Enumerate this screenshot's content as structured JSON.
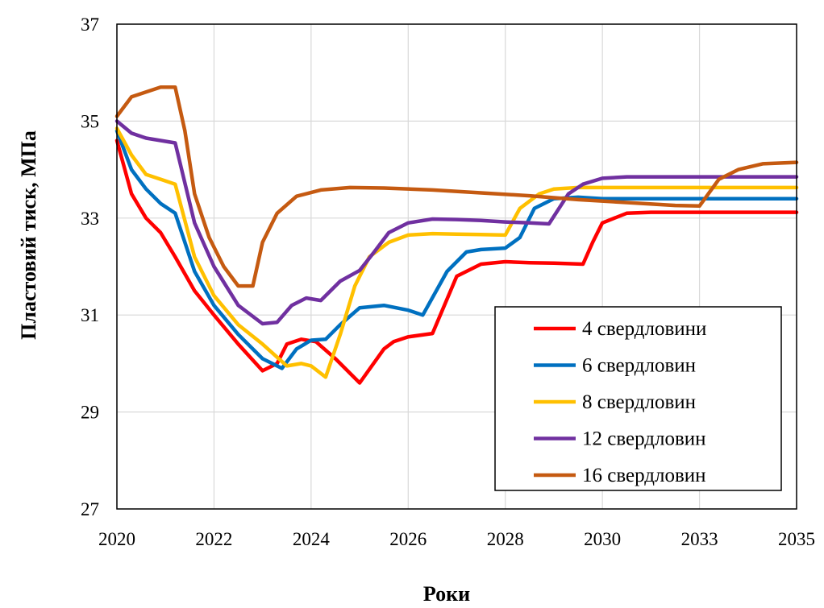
{
  "chart_data": {
    "type": "line",
    "xlabel": "Роки",
    "ylabel": "Пластовий  тиск, МПа",
    "ylim": [
      27,
      37
    ],
    "yticks": [
      27,
      29,
      31,
      33,
      35,
      37
    ],
    "xlim": [
      0,
      14
    ],
    "x_tick_labels": [
      "2020",
      "2022",
      "2024",
      "2026",
      "2028",
      "2030",
      "2033",
      "2035"
    ],
    "grid": true,
    "legend_position": "bottom-right",
    "series": [
      {
        "name": "4 свердловини",
        "color": "#ff0000",
        "x": [
          0,
          0.3,
          0.6,
          0.9,
          1.2,
          1.6,
          2.0,
          2.5,
          3.0,
          3.3,
          3.5,
          3.8,
          4.1,
          4.5,
          5.0,
          5.5,
          5.7,
          6.0,
          6.5,
          7.0,
          7.5,
          8.0,
          8.5,
          9.0,
          9.6,
          9.8,
          10.0,
          10.5,
          11.0,
          12.0,
          13.0,
          14.0
        ],
        "y": [
          34.6,
          33.5,
          33.0,
          32.7,
          32.2,
          31.5,
          31.0,
          30.4,
          29.85,
          30.0,
          30.4,
          30.5,
          30.45,
          30.1,
          29.6,
          30.3,
          30.45,
          30.55,
          30.62,
          31.8,
          32.05,
          32.1,
          32.08,
          32.07,
          32.05,
          32.5,
          32.9,
          33.1,
          33.12,
          33.12,
          33.12,
          33.12
        ]
      },
      {
        "name": "6 свердловин",
        "color": "#0070c0",
        "x": [
          0,
          0.3,
          0.6,
          0.9,
          1.2,
          1.6,
          2.0,
          2.5,
          3.0,
          3.4,
          3.7,
          4.0,
          4.3,
          4.6,
          5.0,
          5.5,
          6.0,
          6.3,
          6.8,
          7.2,
          7.5,
          8.0,
          8.3,
          8.6,
          9.0,
          9.5,
          10.0,
          11.0,
          12.0,
          13.0,
          14.0
        ],
        "y": [
          34.8,
          34.0,
          33.6,
          33.3,
          33.1,
          31.9,
          31.2,
          30.6,
          30.1,
          29.9,
          30.3,
          30.48,
          30.5,
          30.8,
          31.15,
          31.2,
          31.1,
          31.0,
          31.9,
          32.3,
          32.35,
          32.38,
          32.6,
          33.2,
          33.4,
          33.43,
          33.4,
          33.4,
          33.4,
          33.4,
          33.4
        ]
      },
      {
        "name": "8 свердловин",
        "color": "#ffc000",
        "x": [
          0,
          0.3,
          0.6,
          0.9,
          1.2,
          1.6,
          2.0,
          2.5,
          3.0,
          3.5,
          3.8,
          4.0,
          4.3,
          4.6,
          4.9,
          5.2,
          5.6,
          6.0,
          6.5,
          7.0,
          7.5,
          8.0,
          8.3,
          8.7,
          9.0,
          9.5,
          10.0,
          11.0,
          12.0,
          13.0,
          14.0
        ],
        "y": [
          34.85,
          34.3,
          33.9,
          33.8,
          33.7,
          32.2,
          31.4,
          30.8,
          30.4,
          29.95,
          30.0,
          29.95,
          29.72,
          30.6,
          31.6,
          32.2,
          32.5,
          32.65,
          32.68,
          32.67,
          32.66,
          32.65,
          33.2,
          33.5,
          33.6,
          33.63,
          33.63,
          33.63,
          33.63,
          33.63,
          33.63
        ]
      },
      {
        "name": "12 свердловин",
        "color": "#7030a0",
        "x": [
          0,
          0.3,
          0.6,
          0.9,
          1.2,
          1.6,
          2.0,
          2.5,
          3.0,
          3.3,
          3.6,
          3.9,
          4.2,
          4.6,
          5.0,
          5.3,
          5.6,
          6.0,
          6.5,
          7.0,
          7.5,
          8.0,
          8.5,
          8.9,
          9.3,
          9.6,
          10.0,
          10.5,
          11.0,
          12.0,
          13.0,
          14.0
        ],
        "y": [
          35.0,
          34.75,
          34.65,
          34.6,
          34.55,
          32.9,
          32.0,
          31.2,
          30.82,
          30.85,
          31.2,
          31.35,
          31.3,
          31.7,
          31.92,
          32.3,
          32.7,
          32.9,
          32.98,
          32.97,
          32.95,
          32.92,
          32.9,
          32.88,
          33.5,
          33.7,
          33.82,
          33.85,
          33.85,
          33.85,
          33.85,
          33.85
        ]
      },
      {
        "name": "16 свердловин",
        "color": "#c55a11",
        "x": [
          0,
          0.3,
          0.6,
          0.9,
          1.2,
          1.4,
          1.6,
          1.9,
          2.2,
          2.5,
          2.8,
          3.0,
          3.3,
          3.7,
          4.2,
          4.8,
          5.5,
          6.5,
          7.5,
          8.5,
          9.5,
          10.5,
          11.5,
          12.0,
          12.4,
          12.8,
          13.3,
          14.0
        ],
        "y": [
          35.1,
          35.5,
          35.6,
          35.7,
          35.7,
          34.8,
          33.5,
          32.6,
          32.0,
          31.6,
          31.6,
          32.5,
          33.1,
          33.45,
          33.58,
          33.63,
          33.62,
          33.58,
          33.52,
          33.46,
          33.38,
          33.32,
          33.26,
          33.25,
          33.8,
          34.0,
          34.12,
          34.15
        ]
      }
    ]
  }
}
